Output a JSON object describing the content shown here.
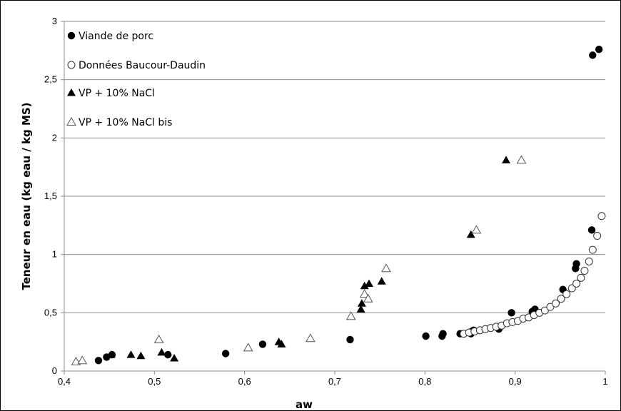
{
  "chart_data": {
    "type": "scatter",
    "title": "",
    "xlabel": "aw",
    "ylabel": "Teneur en eau (kg eau / kg MS)",
    "xlim": [
      0.4,
      1
    ],
    "ylim": [
      0,
      3
    ],
    "x_ticks": [
      "0,4",
      "0,5",
      "0,6",
      "0,7",
      "0,8",
      "0,9",
      "1"
    ],
    "y_ticks": [
      "0",
      "0,5",
      "1",
      "1,5",
      "2",
      "2,5",
      "3"
    ],
    "grid": "horizontal",
    "legend_position": "top-left",
    "series": [
      {
        "name": "Viande de porc",
        "marker": "filled-circle",
        "color": "#000000",
        "points": [
          [
            0.438,
            0.09
          ],
          [
            0.447,
            0.12
          ],
          [
            0.453,
            0.14
          ],
          [
            0.515,
            0.14
          ],
          [
            0.579,
            0.15
          ],
          [
            0.62,
            0.23
          ],
          [
            0.717,
            0.27
          ],
          [
            0.801,
            0.3
          ],
          [
            0.819,
            0.3
          ],
          [
            0.82,
            0.32
          ],
          [
            0.839,
            0.32
          ],
          [
            0.851,
            0.32
          ],
          [
            0.852,
            0.34
          ],
          [
            0.854,
            0.35
          ],
          [
            0.882,
            0.36
          ],
          [
            0.896,
            0.5
          ],
          [
            0.919,
            0.51
          ],
          [
            0.921,
            0.52
          ],
          [
            0.922,
            0.53
          ],
          [
            0.953,
            0.7
          ],
          [
            0.967,
            0.88
          ],
          [
            0.968,
            0.92
          ],
          [
            0.985,
            1.21
          ],
          [
            0.986,
            2.71
          ],
          [
            0.993,
            2.76
          ]
        ]
      },
      {
        "name": "Données Baucour-Daudin",
        "marker": "open-circle",
        "color": "#000000",
        "points": [
          [
            0.843,
            0.32
          ],
          [
            0.849,
            0.33
          ],
          [
            0.855,
            0.34
          ],
          [
            0.861,
            0.35
          ],
          [
            0.867,
            0.36
          ],
          [
            0.873,
            0.37
          ],
          [
            0.879,
            0.38
          ],
          [
            0.885,
            0.39
          ],
          [
            0.891,
            0.41
          ],
          [
            0.897,
            0.42
          ],
          [
            0.903,
            0.43
          ],
          [
            0.909,
            0.45
          ],
          [
            0.915,
            0.46
          ],
          [
            0.921,
            0.48
          ],
          [
            0.927,
            0.5
          ],
          [
            0.933,
            0.52
          ],
          [
            0.939,
            0.55
          ],
          [
            0.945,
            0.58
          ],
          [
            0.951,
            0.62
          ],
          [
            0.957,
            0.66
          ],
          [
            0.963,
            0.71
          ],
          [
            0.968,
            0.75
          ],
          [
            0.973,
            0.8
          ],
          [
            0.977,
            0.86
          ],
          [
            0.982,
            0.94
          ],
          [
            0.986,
            1.04
          ],
          [
            0.991,
            1.16
          ],
          [
            0.996,
            1.33
          ]
        ]
      },
      {
        "name": "VP + 10% NaCl",
        "marker": "filled-triangle",
        "color": "#000000",
        "points": [
          [
            0.452,
            0.14
          ],
          [
            0.474,
            0.14
          ],
          [
            0.485,
            0.13
          ],
          [
            0.508,
            0.16
          ],
          [
            0.522,
            0.11
          ],
          [
            0.638,
            0.25
          ],
          [
            0.641,
            0.23
          ],
          [
            0.729,
            0.53
          ],
          [
            0.73,
            0.58
          ],
          [
            0.733,
            0.73
          ],
          [
            0.738,
            0.75
          ],
          [
            0.752,
            0.77
          ],
          [
            0.851,
            1.17
          ],
          [
            0.89,
            1.81
          ]
        ]
      },
      {
        "name": "VP + 10% NaCl bis",
        "marker": "open-triangle",
        "color": "#000000",
        "points": [
          [
            0.413,
            0.08
          ],
          [
            0.42,
            0.09
          ],
          [
            0.505,
            0.27
          ],
          [
            0.604,
            0.2
          ],
          [
            0.673,
            0.28
          ],
          [
            0.718,
            0.47
          ],
          [
            0.733,
            0.66
          ],
          [
            0.737,
            0.62
          ],
          [
            0.757,
            0.88
          ],
          [
            0.857,
            1.21
          ],
          [
            0.907,
            1.81
          ]
        ]
      }
    ]
  }
}
